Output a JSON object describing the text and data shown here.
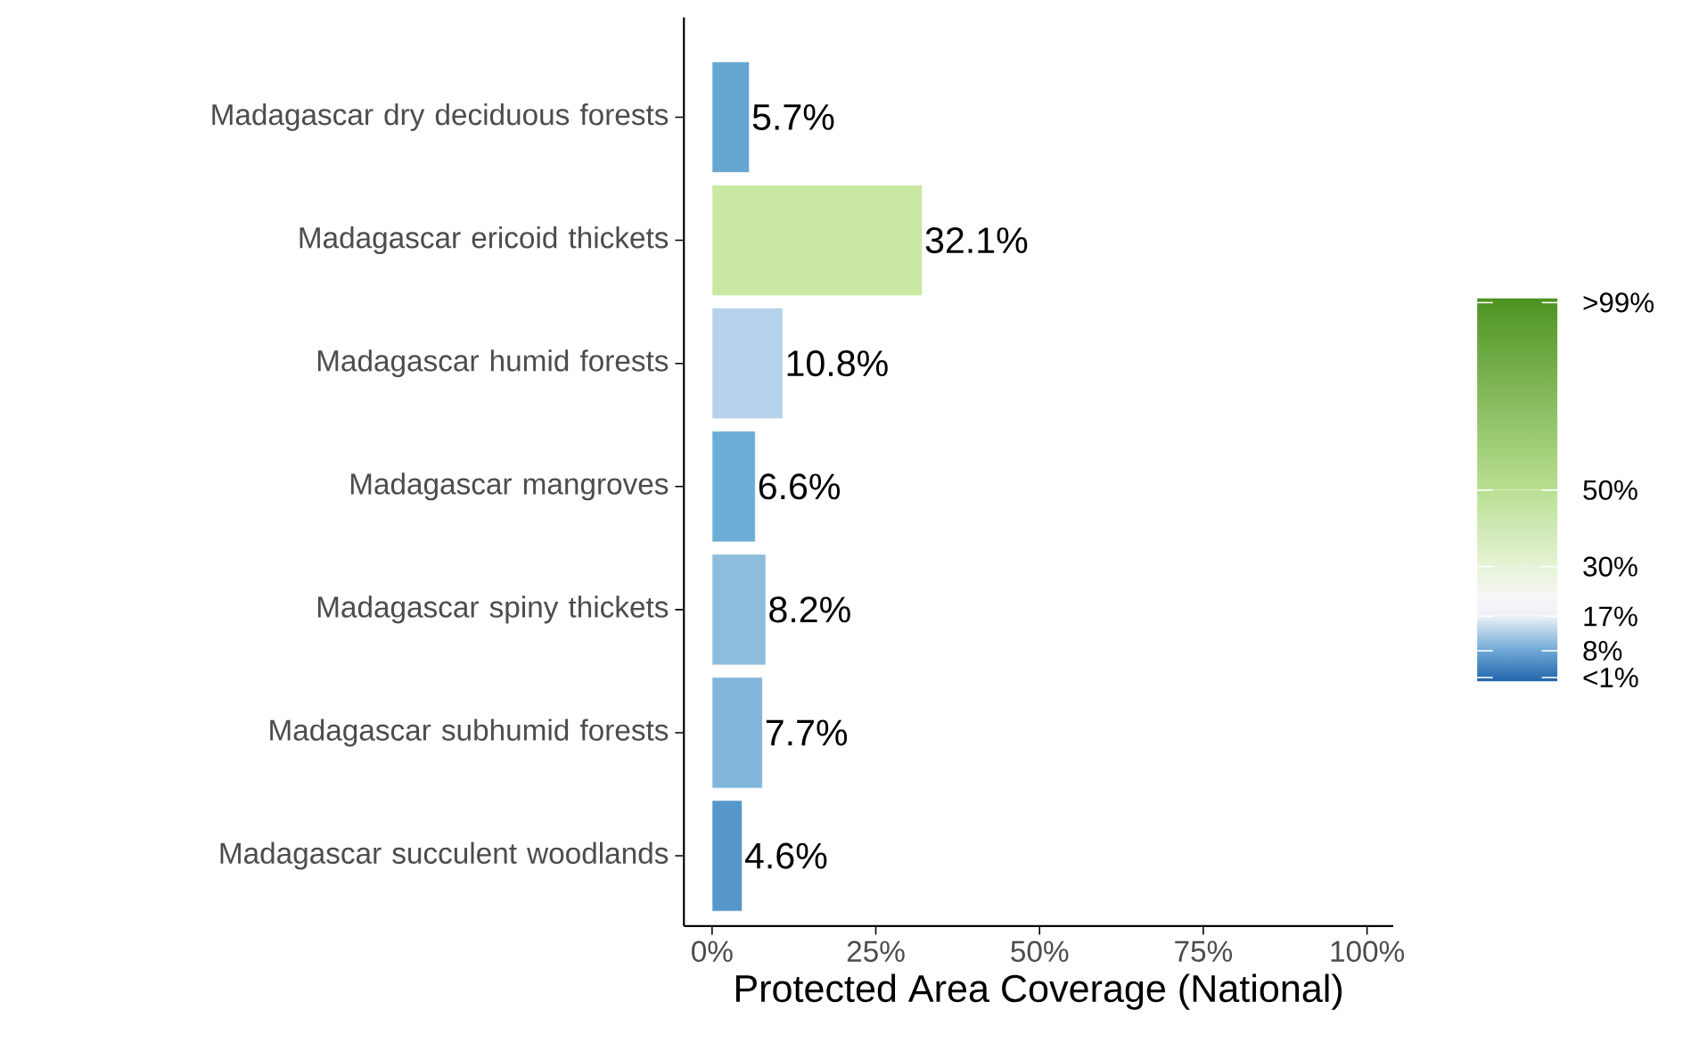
{
  "chart_data": {
    "type": "bar",
    "orientation": "horizontal",
    "xlabel": "Protected Area Coverage (National)",
    "categories": [
      "Madagascar dry deciduous forests",
      "Madagascar ericoid thickets",
      "Madagascar humid forests",
      "Madagascar mangroves",
      "Madagascar spiny thickets",
      "Madagascar subhumid forests",
      "Madagascar succulent woodlands"
    ],
    "values": [
      5.7,
      32.1,
      10.8,
      6.6,
      8.2,
      7.7,
      4.6
    ],
    "value_labels": [
      "5.7%",
      "32.1%",
      "10.8%",
      "6.6%",
      "8.2%",
      "7.7%",
      "4.6%"
    ],
    "colors": [
      "#67a6d1",
      "#c9e8a2",
      "#b5d2ea",
      "#6badd5",
      "#8dbcdd",
      "#82b5da",
      "#5597ca"
    ],
    "xlim": [
      -4.3,
      104
    ],
    "xticks": [
      {
        "value": 0,
        "label": "0%"
      },
      {
        "value": 25,
        "label": "25%"
      },
      {
        "value": 50,
        "label": "50%"
      },
      {
        "value": 75,
        "label": "75%"
      },
      {
        "value": 100,
        "label": "100%"
      }
    ],
    "clim": [
      0,
      100
    ],
    "cticks": [
      {
        "value": 1,
        "label": "<1%"
      },
      {
        "value": 8,
        "label": "8%"
      },
      {
        "value": 17,
        "label": "17%"
      },
      {
        "value": 30,
        "label": "30%"
      },
      {
        "value": 50,
        "label": "50%"
      },
      {
        "value": 99,
        "label": ">99%"
      }
    ]
  }
}
